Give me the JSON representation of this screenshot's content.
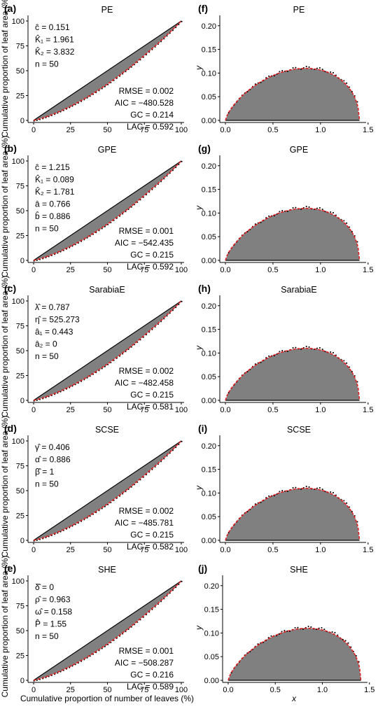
{
  "chart_data": [
    {
      "panel": "(a)",
      "title": "PE",
      "type": "area",
      "kind": "lorenz",
      "x": [
        0,
        25,
        50,
        75,
        100
      ],
      "curve": "lorenz",
      "ylabel": "Cumulative proportion of leaf area (%)",
      "xlim": [
        0,
        100
      ],
      "ylim": [
        0,
        100
      ],
      "params": [
        "ĉ = 0.151",
        "K̂₁ = 1.961",
        "K̂₂ = 3.832",
        "n = 50"
      ],
      "stats": [
        "RMSE =  0.002",
        "AIC = −480.528",
        "GC = 0.214",
        "LAC = 0.592"
      ],
      "gc": 0.214,
      "lac": 0.592
    },
    {
      "panel": "(b)",
      "title": "GPE",
      "type": "area",
      "kind": "lorenz",
      "ylabel": "Cumulative proportion of leaf area (%)",
      "xlim": [
        0,
        100
      ],
      "ylim": [
        0,
        100
      ],
      "params": [
        "ĉ = 1.215",
        "K̂₁ = 0.089",
        "K̂₂ = 1.781",
        "â = 0.766",
        "b̂ = 0.886",
        "n = 50"
      ],
      "stats": [
        "RMSE = 0.001",
        "AIC = −542.435",
        "GC = 0.215",
        "LAC = 0.592"
      ],
      "gc": 0.215,
      "lac": 0.592
    },
    {
      "panel": "(c)",
      "title": "SarabiaE",
      "type": "area",
      "kind": "lorenz",
      "ylabel": "Cumulative proportion of leaf area (%)",
      "xlim": [
        0,
        100
      ],
      "ylim": [
        0,
        100
      ],
      "params": [
        "λ̂ = 0.787",
        "η̂ = 525.273",
        "â₁ = 0.443",
        "â₂ = 0",
        "n = 50"
      ],
      "stats": [
        "RMSE =  0.002",
        "AIC = −482.458",
        "GC = 0.215",
        "LAC = 0.581"
      ],
      "gc": 0.215,
      "lac": 0.581
    },
    {
      "panel": "(d)",
      "title": "SCSE",
      "type": "area",
      "kind": "lorenz",
      "ylabel": "Cumulative proportion of leaf area (%)",
      "xlim": [
        0,
        100
      ],
      "ylim": [
        0,
        100
      ],
      "params": [
        "γ̂ = 0.406",
        "α̂ = 0.886",
        "β̂ = 1",
        "n = 50"
      ],
      "stats": [
        "RMSE =  0.002",
        "AIC = −485.781",
        "GC = 0.215",
        "LAC = 0.582"
      ],
      "gc": 0.215,
      "lac": 0.582
    },
    {
      "panel": "(e)",
      "title": "SHE",
      "type": "area",
      "kind": "lorenz",
      "ylabel": "Cumulative proportion of leaf area (%)",
      "xlabel": "Cumulative proportion of number of leaves (%)",
      "xlim": [
        0,
        100
      ],
      "ylim": [
        0,
        100
      ],
      "params": [
        "δ̂ = 0",
        "ρ̂ = 0.963",
        "ω̂ = 0.158",
        "P̂ = 1.55",
        "n = 50"
      ],
      "stats": [
        "RMSE =  0.001",
        "AIC = −508.287",
        "GC = 0.216",
        "LAC = 0.589"
      ],
      "gc": 0.216,
      "lac": 0.589
    },
    {
      "panel": "(f)",
      "title": "PE",
      "type": "area",
      "kind": "shape",
      "ylabel": "y",
      "xlim": [
        0,
        1.45
      ],
      "ylim": [
        0,
        0.21
      ],
      "width": 1.41,
      "ymax": 0.11,
      "peak_x": 0.85
    },
    {
      "panel": "(g)",
      "title": "GPE",
      "type": "area",
      "kind": "shape",
      "ylabel": "y",
      "xlim": [
        0,
        1.45
      ],
      "ylim": [
        0,
        0.21
      ],
      "width": 1.41,
      "ymax": 0.11,
      "peak_x": 0.85
    },
    {
      "panel": "(h)",
      "title": "SarabiaE",
      "type": "area",
      "kind": "shape",
      "ylabel": "y",
      "xlim": [
        0,
        1.45
      ],
      "ylim": [
        0,
        0.21
      ],
      "width": 1.41,
      "ymax": 0.11,
      "peak_x": 0.85
    },
    {
      "panel": "(i)",
      "title": "SCSE",
      "type": "area",
      "kind": "shape",
      "ylabel": "y",
      "xlim": [
        0,
        1.45
      ],
      "ylim": [
        0,
        0.21
      ],
      "width": 1.41,
      "ymax": 0.11,
      "peak_x": 0.85
    },
    {
      "panel": "(j)",
      "title": "SHE",
      "type": "area",
      "kind": "shape",
      "ylabel": "y",
      "xlabel": "x",
      "xlim": [
        0,
        1.45
      ],
      "ylim": [
        0,
        0.21
      ],
      "width": 1.41,
      "ymax": 0.11,
      "peak_x": 0.85
    }
  ],
  "ticks": {
    "lorenz_x": [
      "0",
      "25",
      "50",
      "75",
      "100"
    ],
    "lorenz_y": [
      "0",
      "25",
      "50",
      "75",
      "100"
    ],
    "shape_x": [
      "0.0",
      "0.5",
      "1.0",
      "1.5"
    ],
    "shape_y": [
      "0.00",
      "0.05",
      "0.10",
      "0.15",
      "0.20"
    ]
  },
  "colors": {
    "fill": "#808080",
    "fit": "#e41a1c",
    "obs": "#000000",
    "diag": "#000000"
  }
}
